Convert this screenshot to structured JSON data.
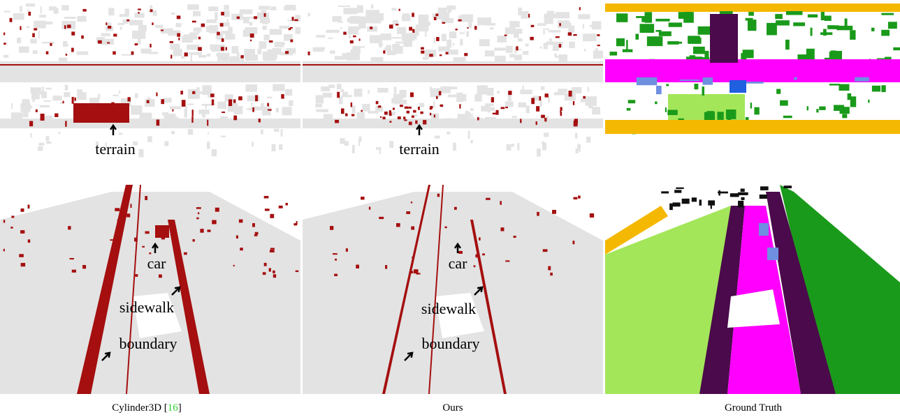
{
  "top_row": {
    "cylinder3d": [
      "terrain"
    ],
    "ours": [
      "terrain"
    ]
  },
  "bottom_row": {
    "cylinder3d": [
      "car",
      "sidewalk",
      "boundary"
    ],
    "ours": [
      "car",
      "sidewalk",
      "boundary"
    ]
  },
  "captions": [
    {
      "text": "Cylinder3D",
      "cite_open": "[",
      "citation": "16",
      "cite_close": "]"
    },
    {
      "text": "Ours"
    },
    {
      "text": "Ground Truth"
    }
  ]
}
